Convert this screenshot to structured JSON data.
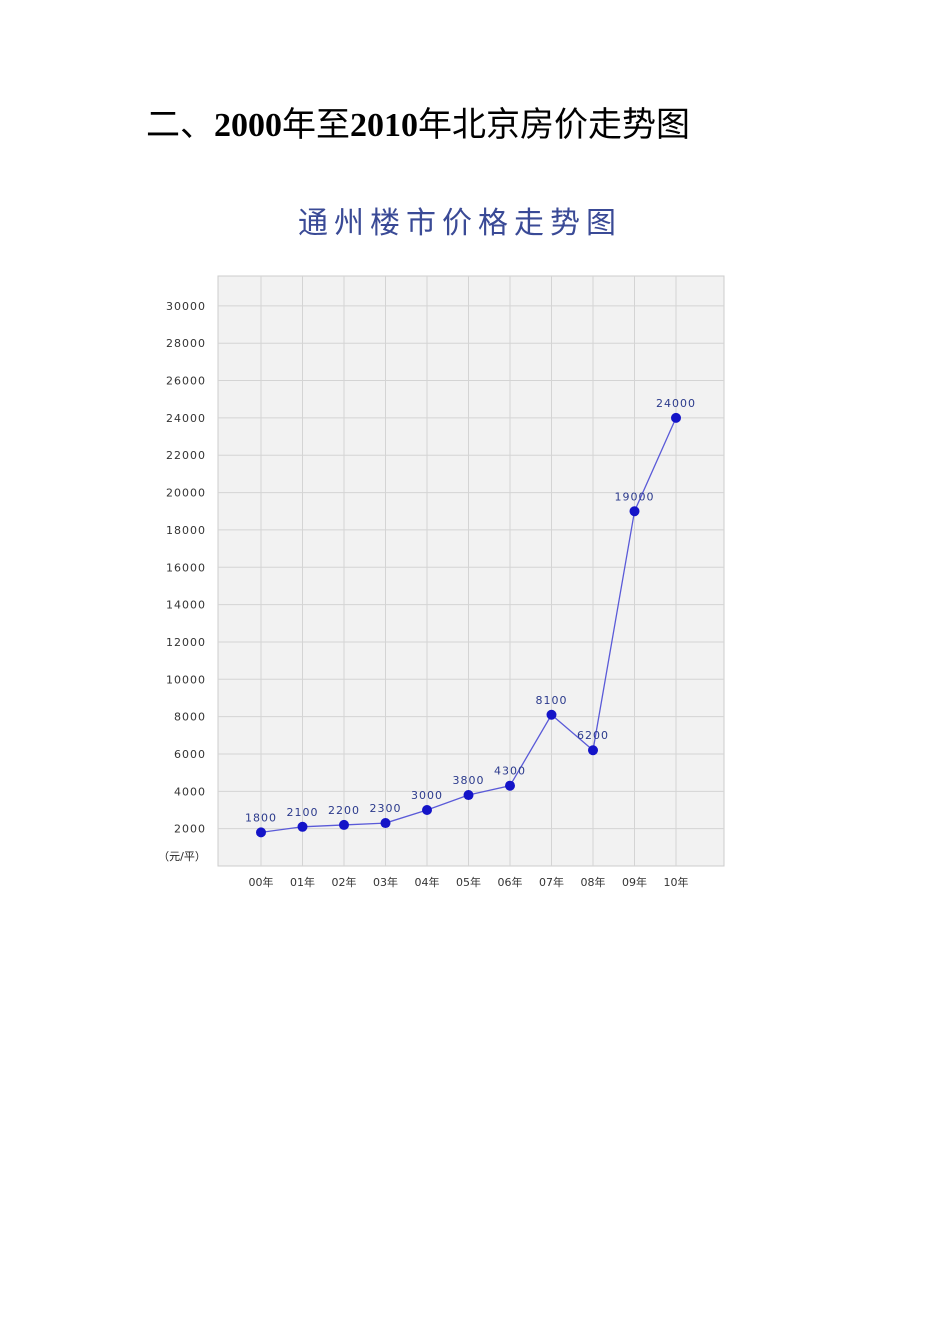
{
  "page": {
    "heading_prefix": "二、",
    "heading_year1": "2000",
    "heading_mid": "年至",
    "heading_year2": "2010",
    "heading_suffix": "年北京房价走势图"
  },
  "chart_data": {
    "type": "line",
    "title": "通州楼市价格走势图",
    "unit_label": "（元/平）",
    "categories": [
      "00年",
      "01年",
      "02年",
      "03年",
      "04年",
      "05年",
      "06年",
      "07年",
      "08年",
      "09年",
      "10年"
    ],
    "values": [
      1800,
      2100,
      2200,
      2300,
      3000,
      3800,
      4300,
      8100,
      6200,
      19000,
      24000
    ],
    "data_labels": [
      "1800",
      "2100",
      "2200",
      "2300",
      "3000",
      "3800",
      "4300",
      "8100",
      "6200",
      "19000",
      "24000"
    ],
    "y_ticks": [
      2000,
      4000,
      6000,
      8000,
      10000,
      12000,
      14000,
      16000,
      18000,
      20000,
      22000,
      24000,
      26000,
      28000,
      30000
    ],
    "ylim": [
      0,
      31600
    ],
    "grid": true,
    "line_color": "#5a5ad8",
    "marker_color": "#1414c8",
    "label_color": "#2b3a8c",
    "plot_bg": "#f2f2f2",
    "grid_color": "#d4d4d4"
  }
}
